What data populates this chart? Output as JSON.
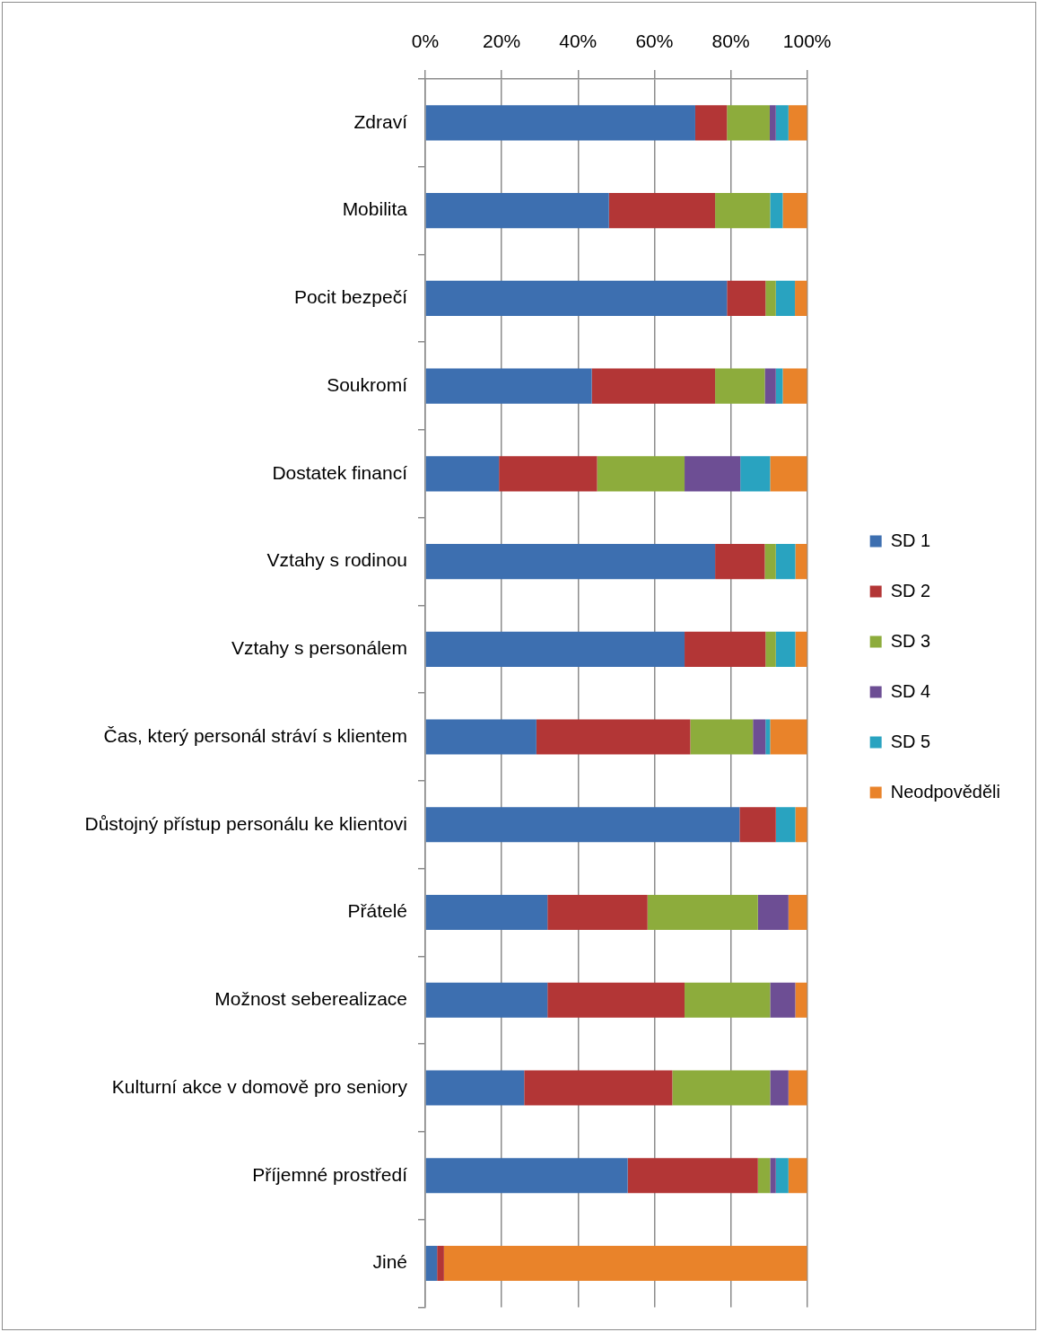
{
  "chart_data": {
    "type": "bar",
    "orientation": "horizontal",
    "stacked": true,
    "categories": [
      "Zdraví",
      "Mobilita",
      "Pocit bezpečí",
      "Soukromí",
      "Dostatek financí",
      "Vztahy s rodinou",
      "Vztahy s personálem",
      "Čas, který personál stráví s klientem",
      "Důstojný přístup personálu ke klientovi",
      "Přátelé",
      "Možnost seberealizace",
      "Kulturní akce v domově pro seniory",
      "Příjemné prostředí",
      "Jiné"
    ],
    "series": [
      {
        "name": "SD 1",
        "color": "#3d6fb0",
        "values": [
          70.7,
          48.1,
          79.0,
          43.6,
          19.3,
          75.9,
          67.9,
          29.1,
          82.3,
          32.0,
          32.0,
          25.9,
          53.0,
          3.1
        ]
      },
      {
        "name": "SD 2",
        "color": "#b33636",
        "values": [
          8.3,
          27.8,
          10.1,
          32.3,
          25.7,
          13.0,
          21.2,
          40.3,
          9.5,
          26.2,
          35.9,
          38.8,
          34.1,
          1.8
        ]
      },
      {
        "name": "SD 3",
        "color": "#8dac3c",
        "values": [
          11.2,
          14.4,
          2.7,
          13.0,
          22.9,
          2.9,
          2.7,
          16.4,
          0,
          28.9,
          22.4,
          25.6,
          3.2,
          0
        ]
      },
      {
        "name": "SD 4",
        "color": "#6d4e94",
        "values": [
          1.6,
          0,
          0,
          2.9,
          14.6,
          0,
          0,
          3.3,
          0,
          8.0,
          6.6,
          4.8,
          1.5,
          0
        ]
      },
      {
        "name": "SD 5",
        "color": "#29a3c0",
        "values": [
          3.3,
          3.3,
          5.0,
          1.8,
          7.8,
          5.1,
          5.1,
          1.2,
          5.1,
          0,
          0,
          0,
          3.3,
          0
        ]
      },
      {
        "name": "Neodpověděli",
        "color": "#e9832a",
        "values": [
          4.9,
          6.4,
          3.2,
          6.4,
          9.7,
          3.1,
          3.1,
          9.7,
          3.1,
          4.9,
          3.1,
          4.9,
          4.9,
          95.1
        ]
      }
    ],
    "xlim": [
      0,
      100
    ],
    "xticks": [
      {
        "value": 0,
        "label": "0%"
      },
      {
        "value": 20,
        "label": "20%"
      },
      {
        "value": 40,
        "label": "40%"
      },
      {
        "value": 60,
        "label": "60%"
      },
      {
        "value": 80,
        "label": "80%"
      },
      {
        "value": 100,
        "label": "100%"
      }
    ],
    "grid": "x",
    "legend": "right"
  }
}
